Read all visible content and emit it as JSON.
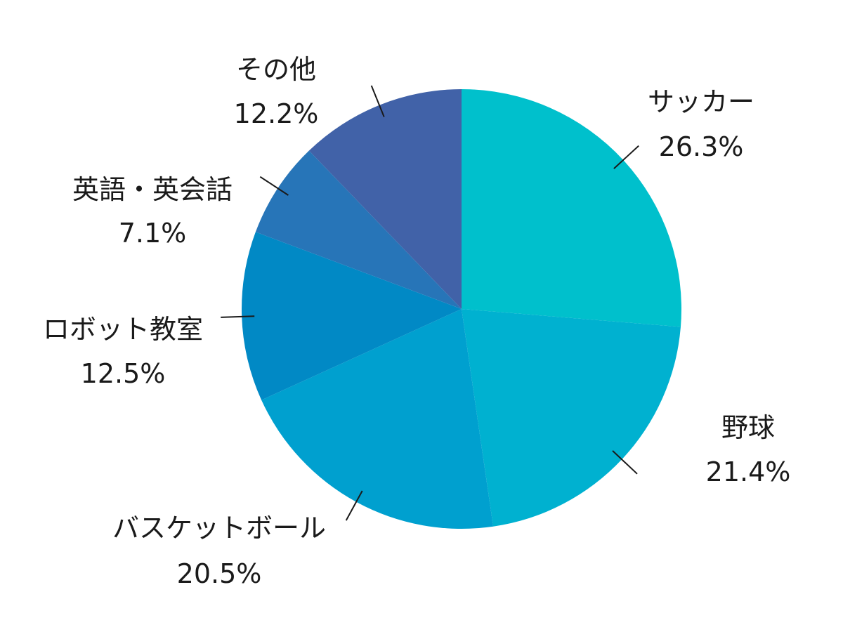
{
  "chart_data": {
    "type": "pie",
    "title": "",
    "slices": [
      {
        "label": "サッカー",
        "value": 26.3,
        "display": "26.3%",
        "color": "#00C0CC"
      },
      {
        "label": "野球",
        "value": 21.4,
        "display": "21.4%",
        "color": "#00B1D0"
      },
      {
        "label": "バスケットボール",
        "value": 20.5,
        "display": "20.5%",
        "color": "#00A0CF"
      },
      {
        "label": "ロボット教室",
        "value": 12.5,
        "display": "12.5%",
        "color": "#0189C5"
      },
      {
        "label": "英語・英会話",
        "value": 7.1,
        "display": "7.1%",
        "color": "#2775B8"
      },
      {
        "label": "その他",
        "value": 12.2,
        "display": "12.2%",
        "color": "#4162A8"
      }
    ],
    "start": "12 o'clock",
    "direction": "clockwise"
  }
}
